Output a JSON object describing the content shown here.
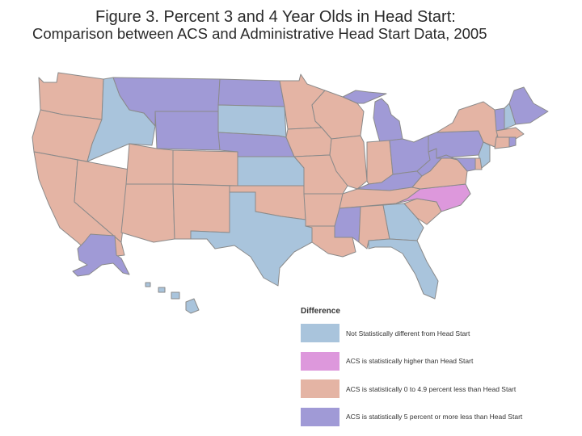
{
  "title_line1": "Figure 3. Percent 3 and 4 Year Olds in Head Start:",
  "title_line2": "Comparison between ACS and Administrative Head Start Data, 2005",
  "legend": {
    "title": "Difference",
    "items": [
      {
        "key": "not_sig",
        "label": "Not Statistically different from Head Start",
        "color": "#a9c4dc"
      },
      {
        "key": "higher",
        "label": "ACS is statistically higher than Head Start",
        "color": "#dd98dc"
      },
      {
        "key": "less_0_4",
        "label": "ACS is statistically 0 to 4.9 percent less than Head Start",
        "color": "#e4b4a4"
      },
      {
        "key": "less_5",
        "label": "ACS is statistically 5 percent or more less than Head Start",
        "color": "#a09ad6"
      }
    ]
  },
  "states": {
    "WA": "less_0_4",
    "OR": "less_0_4",
    "CA": "less_0_4",
    "NV": "less_0_4",
    "ID": "not_sig",
    "MT": "less_5",
    "WY": "less_5",
    "UT": "less_0_4",
    "CO": "less_0_4",
    "AZ": "less_0_4",
    "NM": "less_0_4",
    "ND": "less_5",
    "SD": "not_sig",
    "NE": "less_5",
    "KS": "not_sig",
    "OK": "less_0_4",
    "TX": "not_sig",
    "MN": "less_0_4",
    "IA": "less_0_4",
    "MO": "less_0_4",
    "AR": "less_0_4",
    "LA": "less_0_4",
    "WI": "less_0_4",
    "IL": "less_0_4",
    "MI": "less_5",
    "IN": "less_0_4",
    "OH": "less_5",
    "KY": "less_5",
    "TN": "less_0_4",
    "MS": "less_5",
    "AL": "less_0_4",
    "GA": "not_sig",
    "FL": "not_sig",
    "SC": "less_0_4",
    "NC": "higher",
    "VA": "less_0_4",
    "WV": "less_5",
    "PA": "less_5",
    "NY": "less_0_4",
    "VT": "less_5",
    "NH": "not_sig",
    "ME": "less_5",
    "MA": "less_0_4",
    "CT": "less_0_4",
    "RI": "less_5",
    "NJ": "not_sig",
    "DE": "less_0_4",
    "MD": "less_5",
    "AK": "less_5",
    "HI": "not_sig"
  }
}
